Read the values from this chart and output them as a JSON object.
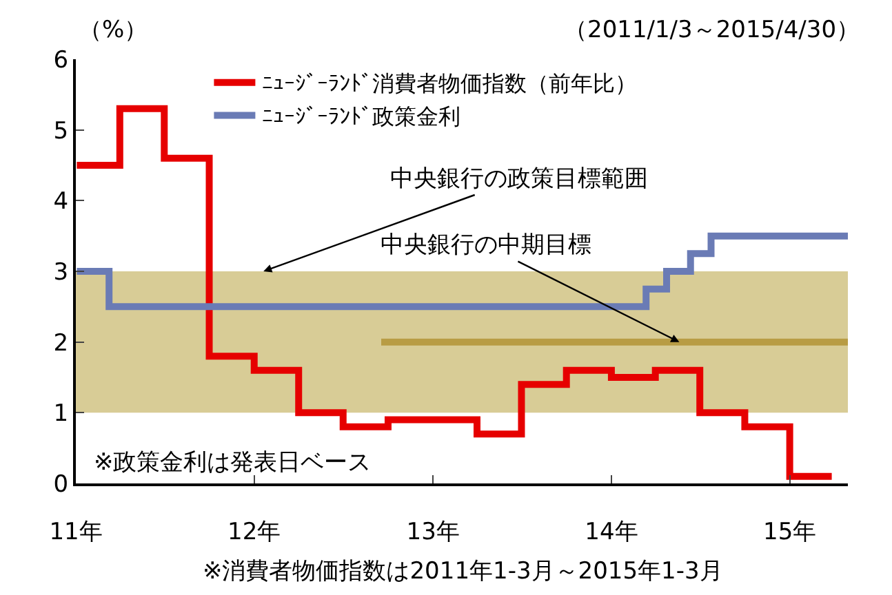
{
  "chart_data": {
    "type": "step",
    "subtitle": "（2011/1/3～2015/4/30）",
    "ylabel": "（%）",
    "annotations": [
      {
        "text": "中央銀行の政策目標範囲",
        "x": "2012-01-20",
        "y": 3
      },
      {
        "text": "中央銀行の中期目標",
        "x": "2014-05-20",
        "y": 2
      },
      "※政策金利は発表日ベース",
      "※消費者物価指数は2011年1-3月～2015年1-3月"
    ],
    "series": [
      {
        "name": "ﾆｭｰｼﾞｰﾗﾝﾄﾞ消費者物価指数（前年比）",
        "color": "#e60000",
        "x": [
          "2011-01-03",
          "2011-04-01",
          "2011-07-01",
          "2011-10-01",
          "2012-01-01",
          "2012-04-01",
          "2012-07-01",
          "2012-10-01",
          "2013-01-01",
          "2013-04-01",
          "2013-07-01",
          "2013-10-01",
          "2014-01-01",
          "2014-04-01",
          "2014-07-01",
          "2014-10-01",
          "2015-01-01",
          "2015-03-28"
        ],
        "values": [
          4.5,
          5.3,
          4.6,
          1.8,
          1.6,
          1.0,
          0.8,
          0.9,
          0.9,
          0.7,
          1.4,
          1.6,
          1.5,
          1.6,
          1.0,
          0.8,
          0.1,
          0.1
        ]
      },
      {
        "name": "ﾆｭｰｼﾞｰﾗﾝﾄﾞ政策金利",
        "color": "#6a7bb5",
        "x": [
          "2011-01-03",
          "2011-03-10",
          "2014-03-13",
          "2014-04-24",
          "2014-06-12",
          "2014-07-24",
          "2015-04-30"
        ],
        "values": [
          3.0,
          2.5,
          2.75,
          3.0,
          3.25,
          3.5,
          3.5
        ]
      },
      {
        "type": "line",
        "color": "#b89c44",
        "x": [
          "2012-09-17",
          "2015-04-30"
        ],
        "values": [
          2,
          2
        ]
      }
    ],
    "bands": [
      {
        "axis": "y",
        "from": 1,
        "to": 3,
        "color": "#d8cc96"
      }
    ],
    "xlim": [
      "2011-01-01",
      "2015-04-30"
    ],
    "xticks": [
      {
        "value": "2011-01-01",
        "label": "11年"
      },
      {
        "value": "2012-01-01",
        "label": "12年"
      },
      {
        "value": "2013-01-01",
        "label": "13年"
      },
      {
        "value": "2014-01-01",
        "label": "14年"
      },
      {
        "value": "2015-01-01",
        "label": "15年"
      }
    ],
    "ylim": [
      0,
      6
    ],
    "yticks": [
      0,
      1,
      2,
      3,
      4,
      5,
      6
    ],
    "grid": false,
    "legend": "top left",
    "marker": "none",
    "line_style": "solid"
  }
}
